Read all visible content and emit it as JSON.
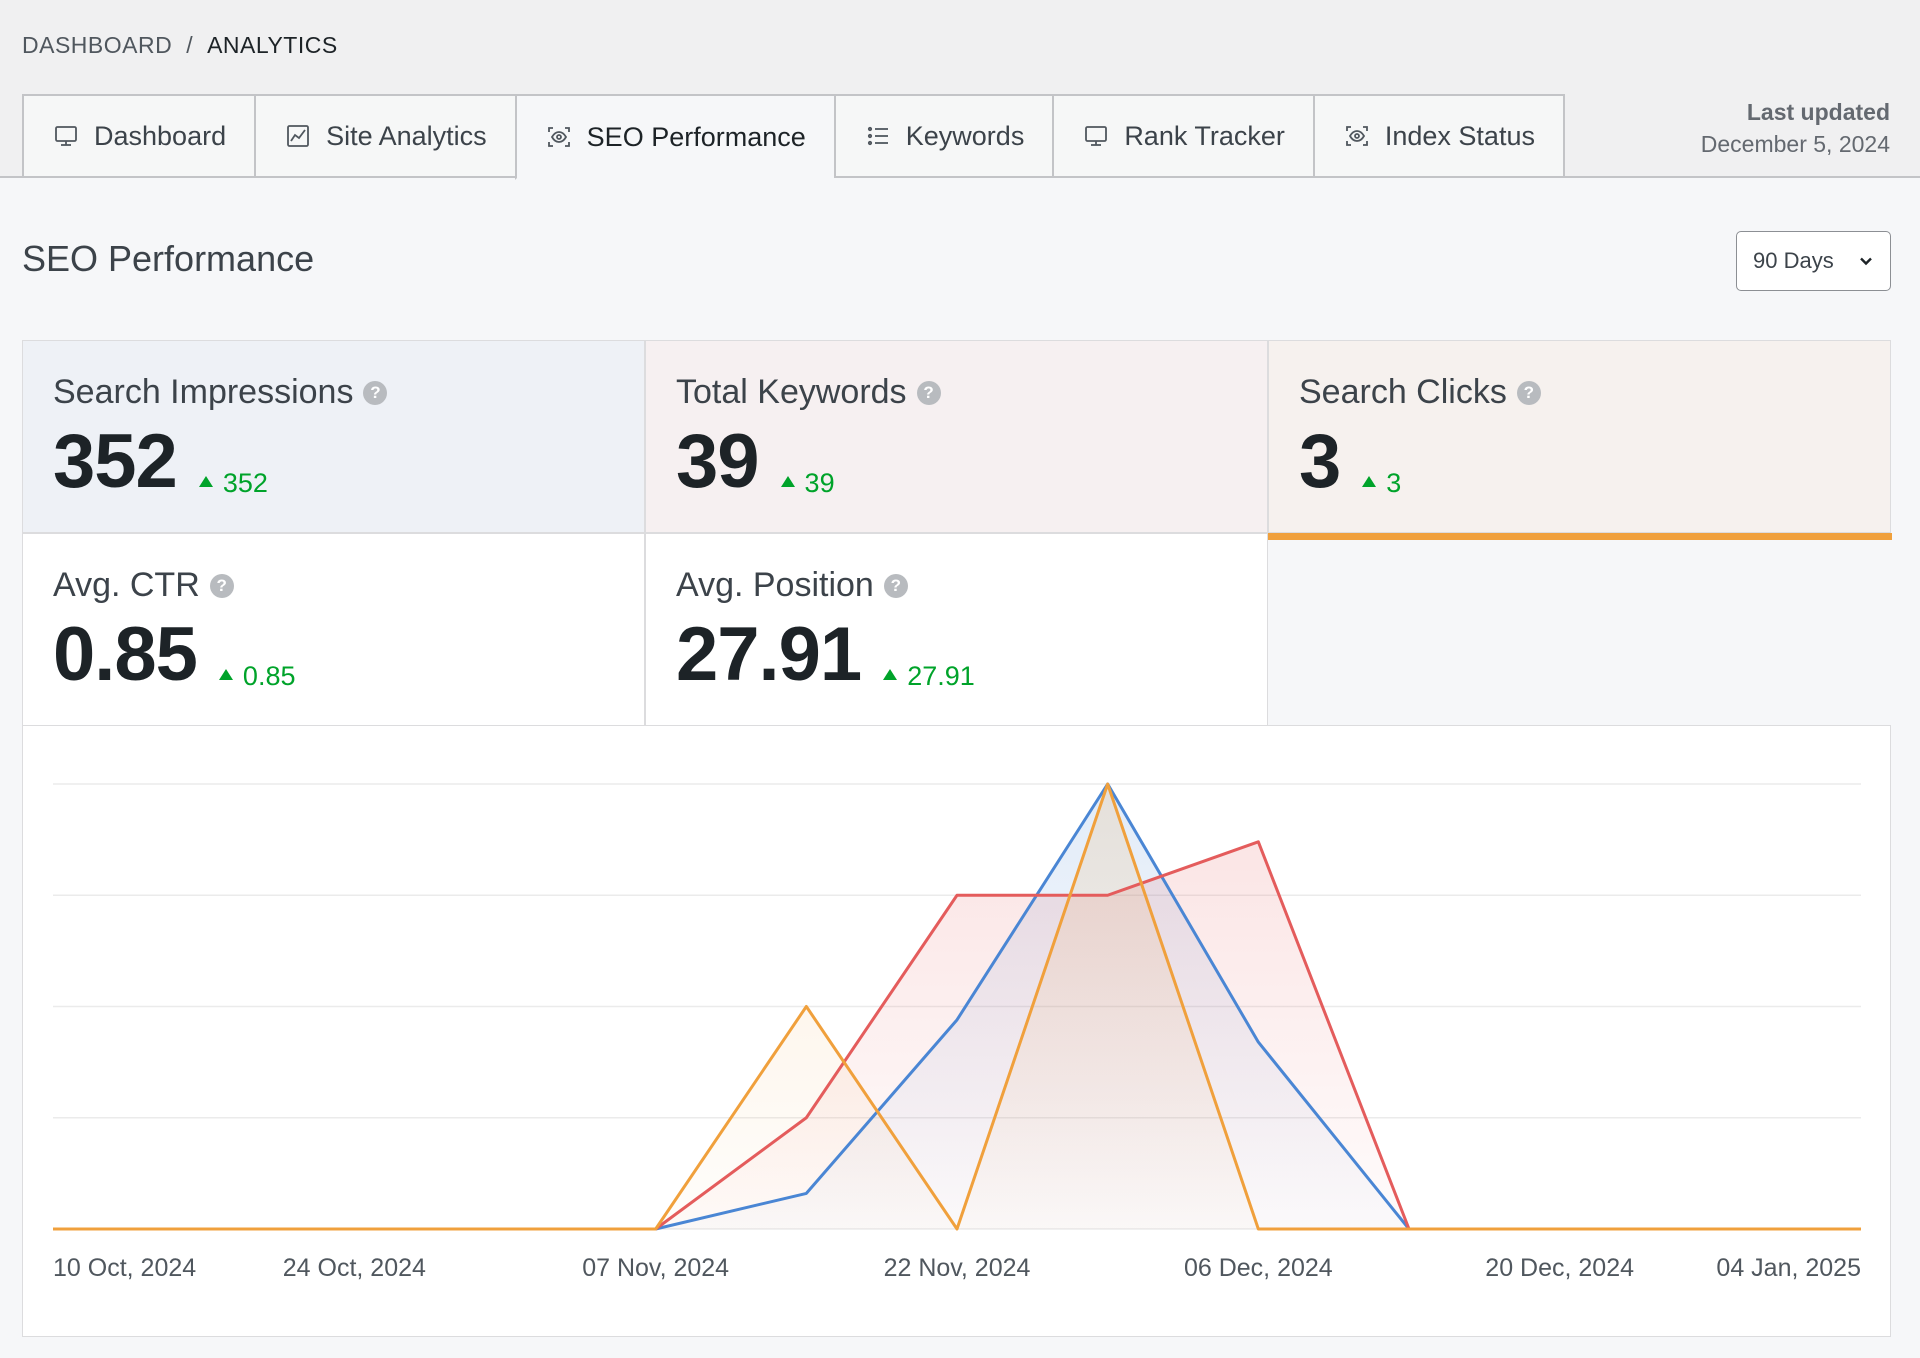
{
  "breadcrumb": {
    "root": "DASHBOARD",
    "separator": "/",
    "current": "ANALYTICS"
  },
  "tabs": [
    {
      "label": "Dashboard",
      "icon": "monitor-icon",
      "active": false
    },
    {
      "label": "Site Analytics",
      "icon": "chart-icon",
      "active": false
    },
    {
      "label": "SEO Performance",
      "icon": "eye-scan-icon",
      "active": true
    },
    {
      "label": "Keywords",
      "icon": "list-icon",
      "active": false
    },
    {
      "label": "Rank Tracker",
      "icon": "monitor-icon",
      "active": false
    },
    {
      "label": "Index Status",
      "icon": "eye-scan-icon",
      "active": false
    }
  ],
  "last_updated": {
    "label": "Last updated",
    "date": "December 5, 2024"
  },
  "page_title": "SEO Performance",
  "period_select": {
    "value": "90 Days"
  },
  "stats": [
    {
      "label": "Search Impressions",
      "value": "352",
      "delta": "352",
      "color": "#4a86d4"
    },
    {
      "label": "Total Keywords",
      "value": "39",
      "delta": "39",
      "color": "#e45c5c"
    },
    {
      "label": "Search Clicks",
      "value": "3",
      "delta": "3",
      "color": "#f0a03c"
    },
    {
      "label": "Avg. CTR",
      "value": "0.85",
      "delta": "0.85"
    },
    {
      "label": "Avg. Position",
      "value": "27.91",
      "delta": "27.91"
    }
  ],
  "colors": {
    "impressions": "#4a86d4",
    "keywords": "#e45c5c",
    "clicks": "#f0a03c",
    "positive": "#00a32a"
  },
  "chart_data": {
    "type": "area",
    "x_tick_labels": [
      "10 Oct, 2024",
      "24 Oct, 2024",
      "07 Nov, 2024",
      "22 Nov, 2024",
      "06 Dec, 2024",
      "20 Dec, 2024",
      "04 Jan, 2025"
    ],
    "x": [
      "10 Oct",
      "17 Oct",
      "24 Oct",
      "31 Oct",
      "07 Nov",
      "14 Nov",
      "22 Nov",
      "29 Nov",
      "06 Dec",
      "13 Dec",
      "20 Dec",
      "27 Dec",
      "04 Jan"
    ],
    "ylim": [
      0,
      1
    ],
    "grid": true,
    "series": [
      {
        "key": "impressions",
        "values": [
          0,
          0,
          0,
          0,
          0,
          0.08,
          0.47,
          1.0,
          0.42,
          0,
          0,
          0,
          0
        ]
      },
      {
        "key": "keywords",
        "values": [
          0,
          0,
          0,
          0,
          0,
          0.25,
          0.75,
          0.75,
          0.87,
          0,
          0,
          0,
          0
        ]
      },
      {
        "key": "clicks",
        "values": [
          0,
          0,
          0,
          0,
          0,
          0.5,
          0,
          1.0,
          0,
          0,
          0,
          0,
          0
        ]
      }
    ]
  }
}
